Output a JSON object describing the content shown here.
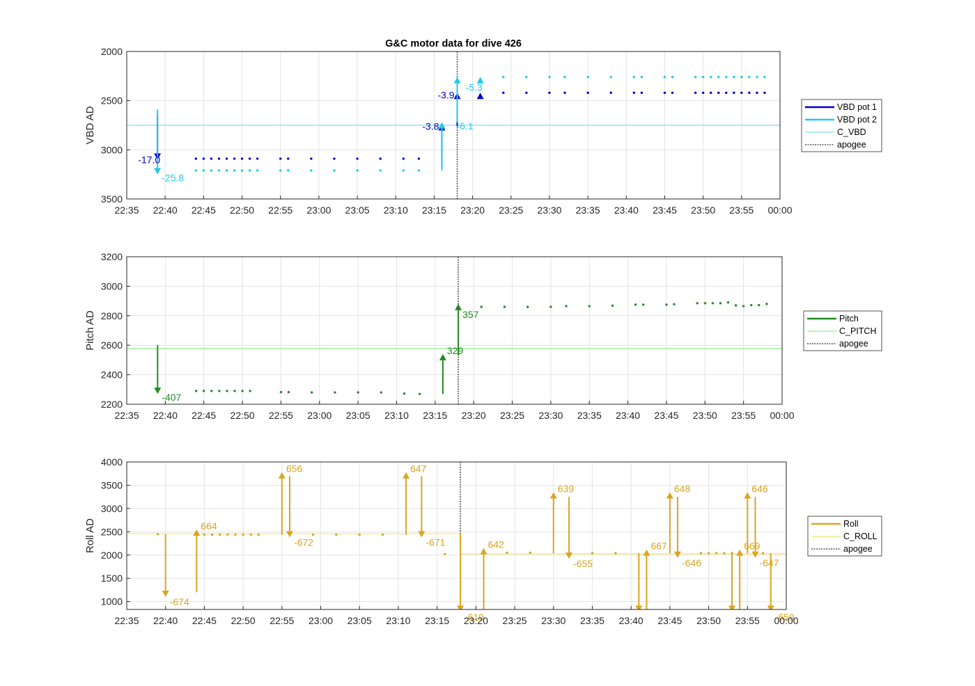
{
  "figure_title": "G&C motor data for dive 426",
  "time_ticks": [
    "22:35",
    "22:40",
    "22:45",
    "22:50",
    "22:55",
    "23:00",
    "23:05",
    "23:10",
    "23:15",
    "23:20",
    "23:25",
    "23:30",
    "23:35",
    "23:40",
    "23:45",
    "23:50",
    "23:55",
    "00:00"
  ],
  "apogee_time": "23:18",
  "colors": {
    "vbd_pot1": "#0000cd",
    "vbd_pot2": "#1ec8f0",
    "c_vbd": "#7fdcef",
    "pitch": "#228b22",
    "c_pitch": "#90ee90",
    "roll": "#daa520",
    "c_roll": "#f5e676",
    "apogee": "#555555"
  },
  "chart_data": [
    {
      "type": "scatter",
      "id": "vbd",
      "title": "G&C motor data for dive 426",
      "ylabel": "VBD AD",
      "xlim": [
        "22:35",
        "00:00"
      ],
      "ylim": [
        3500,
        2000
      ],
      "y_reversed": true,
      "yticks": [
        "2000",
        "2500",
        "3000",
        "3500"
      ],
      "grid": true,
      "legend_position": "right",
      "legend": [
        "VBD pot 1",
        "VBD pot 2",
        "C_VBD",
        "apogee"
      ],
      "reference_lines": [
        {
          "name": "C_VBD",
          "value": 2750,
          "color_key": "c_vbd"
        }
      ],
      "series": [
        {
          "name": "VBD pot 1",
          "color_key": "vbd_pot1",
          "x": [
            "22:44",
            "22:45",
            "22:46",
            "22:47",
            "22:48",
            "22:49",
            "22:50",
            "22:51",
            "22:52",
            "22:55",
            "22:56",
            "22:59",
            "23:02",
            "23:05",
            "23:08",
            "23:11",
            "23:13",
            "23:24",
            "23:27",
            "23:30",
            "23:32",
            "23:35",
            "23:38",
            "23:41",
            "23:42",
            "23:45",
            "23:46",
            "23:49",
            "23:50",
            "23:51",
            "23:52",
            "23:53",
            "23:54",
            "23:55",
            "23:56",
            "23:57",
            "23:58"
          ],
          "y": [
            3090,
            3090,
            3090,
            3090,
            3090,
            3090,
            3090,
            3090,
            3090,
            3090,
            3090,
            3090,
            3090,
            3090,
            3090,
            3090,
            3090,
            2420,
            2420,
            2420,
            2420,
            2420,
            2420,
            2420,
            2420,
            2420,
            2420,
            2420,
            2420,
            2420,
            2420,
            2420,
            2420,
            2420,
            2420,
            2420,
            2420
          ]
        },
        {
          "name": "VBD pot 2",
          "color_key": "vbd_pot2",
          "x": [
            "22:44",
            "22:45",
            "22:46",
            "22:47",
            "22:48",
            "22:49",
            "22:50",
            "22:51",
            "22:52",
            "22:55",
            "22:56",
            "22:59",
            "23:02",
            "23:05",
            "23:08",
            "23:11",
            "23:13",
            "23:24",
            "23:27",
            "23:30",
            "23:32",
            "23:35",
            "23:38",
            "23:41",
            "23:42",
            "23:45",
            "23:46",
            "23:49",
            "23:50",
            "23:51",
            "23:52",
            "23:53",
            "23:54",
            "23:55",
            "23:56",
            "23:57",
            "23:58"
          ],
          "y": [
            3210,
            3210,
            3210,
            3210,
            3210,
            3210,
            3210,
            3210,
            3210,
            3210,
            3210,
            3210,
            3210,
            3210,
            3210,
            3210,
            3210,
            2260,
            2260,
            2260,
            2260,
            2260,
            2260,
            2260,
            2260,
            2260,
            2260,
            2260,
            2260,
            2260,
            2260,
            2260,
            2260,
            2260,
            2260,
            2260,
            2260
          ]
        }
      ],
      "motor_moves": [
        {
          "series_color": "vbd_pot1",
          "time": "22:39",
          "from": 2650,
          "to": 3100,
          "label": "-17.0"
        },
        {
          "series_color": "vbd_pot2",
          "time": "22:39",
          "from": 2590,
          "to": 3250,
          "label": "-25.8"
        },
        {
          "series_color": "vbd_pot1",
          "time": "23:16",
          "from": 3080,
          "to": 2740,
          "label": "-3.8"
        },
        {
          "series_color": "vbd_pot2",
          "time": "23:16",
          "from": 3210,
          "to": 2720,
          "label": ""
        },
        {
          "series_color": "vbd_pot1",
          "time": "23:18",
          "from": 2760,
          "to": 2420,
          "label": "-3.9"
        },
        {
          "series_color": "vbd_pot2",
          "time": "23:18",
          "from": 2720,
          "to": 2260,
          "label": "-6.1"
        },
        {
          "series_color": "vbd_pot1",
          "time": "23:21",
          "from": 2430,
          "to": 2420,
          "label": ""
        },
        {
          "series_color": "vbd_pot2",
          "time": "23:21",
          "from": 2270,
          "to": 2260,
          "label": "-5.3"
        }
      ]
    },
    {
      "type": "scatter",
      "id": "pitch",
      "ylabel": "Pitch AD",
      "xlim": [
        "22:35",
        "00:00"
      ],
      "ylim": [
        2200,
        3200
      ],
      "yticks": [
        "2200",
        "2400",
        "2600",
        "2800",
        "3000",
        "3200"
      ],
      "grid": true,
      "legend_position": "right",
      "legend": [
        "Pitch",
        "C_PITCH",
        "apogee"
      ],
      "reference_lines": [
        {
          "name": "C_PITCH",
          "value": 2578,
          "color_key": "c_pitch"
        }
      ],
      "series": [
        {
          "name": "Pitch",
          "color_key": "pitch",
          "x": [
            "22:44",
            "22:45",
            "22:46",
            "22:47",
            "22:48",
            "22:49",
            "22:50",
            "22:51",
            "22:55",
            "22:56",
            "22:59",
            "23:02",
            "23:05",
            "23:08",
            "23:11",
            "23:13",
            "23:21",
            "23:24",
            "23:27",
            "23:30",
            "23:32",
            "23:35",
            "23:38",
            "23:41",
            "23:42",
            "23:45",
            "23:46",
            "23:49",
            "23:50",
            "23:51",
            "23:52",
            "23:53",
            "23:54",
            "23:55",
            "23:56",
            "23:57",
            "23:58"
          ],
          "y": [
            2290,
            2290,
            2290,
            2290,
            2290,
            2290,
            2290,
            2290,
            2282,
            2282,
            2280,
            2280,
            2280,
            2280,
            2272,
            2270,
            2860,
            2860,
            2860,
            2860,
            2865,
            2865,
            2868,
            2875,
            2875,
            2875,
            2878,
            2885,
            2885,
            2885,
            2885,
            2890,
            2870,
            2865,
            2872,
            2872,
            2880
          ]
        }
      ],
      "motor_moves": [
        {
          "series_color": "pitch",
          "time": "22:39",
          "from": 2600,
          "to": 2270,
          "label": "-407"
        },
        {
          "series_color": "pitch",
          "time": "23:16",
          "from": 2270,
          "to": 2540,
          "label": "329"
        },
        {
          "series_color": "pitch",
          "time": "23:18",
          "from": 2530,
          "to": 2880,
          "label": "357"
        }
      ]
    },
    {
      "type": "scatter",
      "id": "roll",
      "ylabel": "Roll AD",
      "xlim": [
        "22:35",
        "00:00"
      ],
      "ylim": [
        830,
        4000
      ],
      "yticks": [
        "1000",
        "1500",
        "2000",
        "2500",
        "3000",
        "3500",
        "4000"
      ],
      "grid": true,
      "legend_position": "right",
      "legend": [
        "Roll",
        "C_ROLL",
        "apogee"
      ],
      "reference_lines": [
        {
          "name": "C_ROLL",
          "value": 2460,
          "color_key": "c_roll",
          "x_range": [
            "22:35",
            "23:18"
          ]
        },
        {
          "name": "C_ROLL",
          "value": 2025,
          "color_key": "c_roll",
          "x_range": [
            "23:18",
            "00:00"
          ]
        }
      ],
      "series": [
        {
          "name": "Roll",
          "color_key": "roll",
          "x": [
            "22:39",
            "22:45",
            "22:46",
            "22:47",
            "22:48",
            "22:49",
            "22:50",
            "22:51",
            "22:52",
            "22:59",
            "23:02",
            "23:05",
            "23:08",
            "23:16",
            "23:24",
            "23:27",
            "23:35",
            "23:38",
            "23:49",
            "23:50",
            "23:51",
            "23:52",
            "23:53",
            "23:57"
          ],
          "y": [
            2450,
            2440,
            2440,
            2440,
            2440,
            2440,
            2440,
            2440,
            2440,
            2440,
            2440,
            2440,
            2440,
            2020,
            2050,
            2050,
            2040,
            2040,
            2040,
            2040,
            2040,
            2040,
            2040,
            2040
          ]
        }
      ],
      "motor_moves": [
        {
          "series_color": "roll",
          "time": "22:40",
          "from": 2450,
          "to": 1100,
          "label": "-674"
        },
        {
          "series_color": "roll",
          "time": "22:44",
          "from": 1200,
          "to": 2550,
          "label": "664"
        },
        {
          "series_color": "roll",
          "time": "22:55",
          "from": 2440,
          "to": 3780,
          "label": "656"
        },
        {
          "series_color": "roll",
          "time": "22:56",
          "from": 3700,
          "to": 2380,
          "label": "-672"
        },
        {
          "series_color": "roll",
          "time": "23:11",
          "from": 2440,
          "to": 3780,
          "label": "647"
        },
        {
          "series_color": "roll",
          "time": "23:13",
          "from": 3700,
          "to": 2380,
          "label": "-671"
        },
        {
          "series_color": "roll",
          "time": "23:18",
          "from": 2460,
          "to": 780,
          "label": "-619"
        },
        {
          "series_color": "roll",
          "time": "23:21",
          "from": 780,
          "to": 2150,
          "label": "642"
        },
        {
          "series_color": "roll",
          "time": "23:30",
          "from": 2040,
          "to": 3350,
          "label": "639"
        },
        {
          "series_color": "roll",
          "time": "23:32",
          "from": 3250,
          "to": 1920,
          "label": "-655"
        },
        {
          "series_color": "roll",
          "time": "23:41",
          "from": 2040,
          "to": 780,
          "label": ""
        },
        {
          "series_color": "roll",
          "time": "23:42",
          "from": 780,
          "to": 2120,
          "label": "667"
        },
        {
          "series_color": "roll",
          "time": "23:45",
          "from": 2040,
          "to": 3350,
          "label": "648"
        },
        {
          "series_color": "roll",
          "time": "23:46",
          "from": 3250,
          "to": 1940,
          "label": "-646"
        },
        {
          "series_color": "roll",
          "time": "23:53",
          "from": 2040,
          "to": 780,
          "label": ""
        },
        {
          "series_color": "roll",
          "time": "23:54",
          "from": 780,
          "to": 2120,
          "label": "669"
        },
        {
          "series_color": "roll",
          "time": "23:55",
          "from": 2040,
          "to": 3350,
          "label": "646"
        },
        {
          "series_color": "roll",
          "time": "23:56",
          "from": 3250,
          "to": 1940,
          "label": "-647"
        },
        {
          "series_color": "roll",
          "time": "23:58",
          "from": 2040,
          "to": 780,
          "label": "-659"
        }
      ]
    }
  ]
}
